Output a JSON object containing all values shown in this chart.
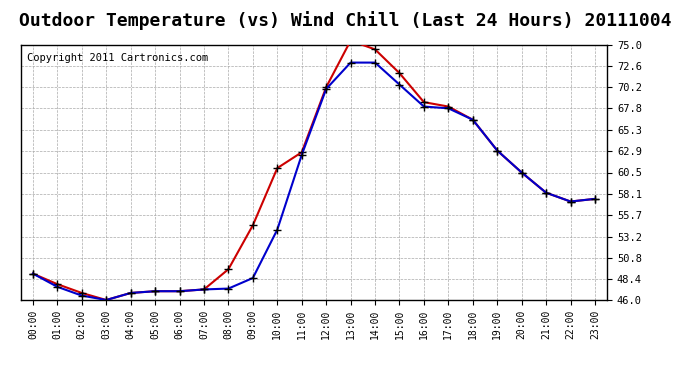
{
  "title": "Outdoor Temperature (vs) Wind Chill (Last 24 Hours) 20111004",
  "copyright": "Copyright 2011 Cartronics.com",
  "x_labels": [
    "00:00",
    "01:00",
    "02:00",
    "03:00",
    "04:00",
    "05:00",
    "06:00",
    "07:00",
    "08:00",
    "09:00",
    "10:00",
    "11:00",
    "12:00",
    "13:00",
    "14:00",
    "15:00",
    "16:00",
    "17:00",
    "18:00",
    "19:00",
    "20:00",
    "21:00",
    "22:00",
    "23:00"
  ],
  "temp": [
    49.0,
    47.8,
    46.8,
    46.0,
    46.8,
    47.0,
    47.0,
    47.2,
    49.5,
    54.5,
    61.0,
    62.8,
    70.2,
    75.5,
    74.5,
    71.8,
    68.5,
    68.0,
    66.5,
    63.0,
    60.5,
    58.2,
    57.2,
    57.5
  ],
  "windchill": [
    49.0,
    47.5,
    46.5,
    46.0,
    46.8,
    47.0,
    47.0,
    47.2,
    47.3,
    48.5,
    54.0,
    62.5,
    70.0,
    73.0,
    73.0,
    70.5,
    68.0,
    67.8,
    66.5,
    63.0,
    60.5,
    58.2,
    57.2,
    57.5
  ],
  "temp_color": "#cc0000",
  "windchill_color": "#0000cc",
  "ylim_min": 46.0,
  "ylim_max": 75.0,
  "yticks": [
    46.0,
    48.4,
    50.8,
    53.2,
    55.7,
    58.1,
    60.5,
    62.9,
    65.3,
    67.8,
    70.2,
    72.6,
    75.0
  ],
  "bg_color": "#ffffff",
  "plot_bg_color": "#ffffff",
  "grid_color": "#aaaaaa",
  "title_fontsize": 13,
  "copyright_fontsize": 7.5,
  "marker": "+",
  "marker_color": "#000000",
  "marker_size": 6,
  "linewidth": 1.5
}
